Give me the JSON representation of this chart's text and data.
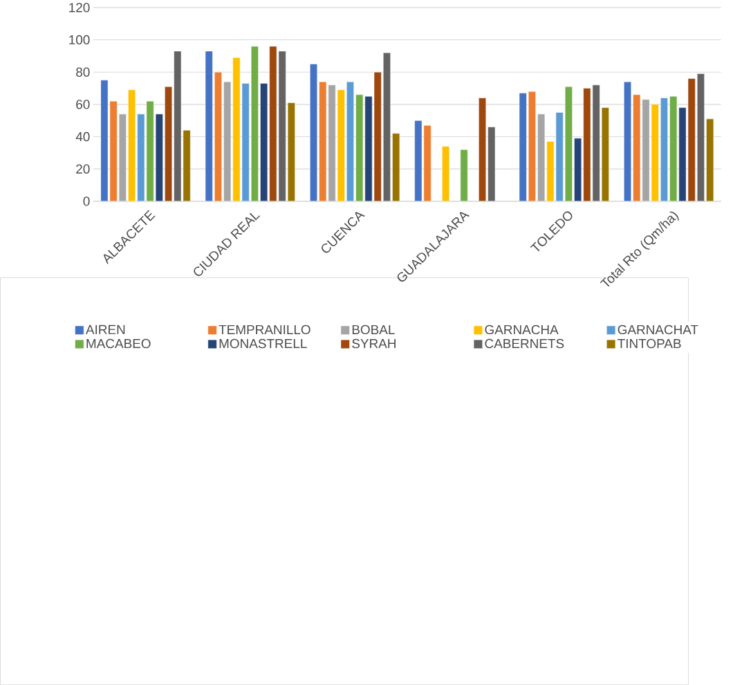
{
  "chart_data": {
    "type": "bar",
    "categories": [
      "ALBACETE",
      "CIUDAD REAL",
      "CUENCA",
      "GUADALAJARA",
      "TOLEDO",
      "Total Rto (Qm/ha)"
    ],
    "series": [
      {
        "name": "AIREN",
        "color": "#4472c4",
        "values": [
          75,
          93,
          85,
          50,
          67,
          74
        ]
      },
      {
        "name": "TEMPRANILLO",
        "color": "#ed7d31",
        "values": [
          62,
          80,
          74,
          47,
          68,
          66
        ]
      },
      {
        "name": "BOBAL",
        "color": "#a5a5a5",
        "values": [
          54,
          74,
          72,
          null,
          54,
          63
        ]
      },
      {
        "name": "GARNACHA",
        "color": "#ffc000",
        "values": [
          69,
          89,
          69,
          34,
          37,
          60
        ]
      },
      {
        "name": "GARNACHAT",
        "color": "#5b9bd5",
        "values": [
          54,
          73,
          74,
          null,
          55,
          64
        ]
      },
      {
        "name": "MACABEO",
        "color": "#70ad47",
        "values": [
          62,
          96,
          66,
          32,
          71,
          65
        ]
      },
      {
        "name": "MONASTRELL",
        "color": "#264478",
        "values": [
          54,
          73,
          65,
          null,
          39,
          58
        ]
      },
      {
        "name": "SYRAH",
        "color": "#9e480e",
        "values": [
          71,
          96,
          80,
          64,
          70,
          76
        ]
      },
      {
        "name": "CABERNETS",
        "color": "#636363",
        "values": [
          93,
          93,
          92,
          46,
          72,
          79
        ]
      },
      {
        "name": "TINTOPAB",
        "color": "#997300",
        "values": [
          44,
          61,
          42,
          null,
          58,
          51
        ]
      }
    ],
    "ylim": [
      0,
      120
    ],
    "yticks": [
      0,
      20,
      40,
      60,
      80,
      100,
      120
    ],
    "grid": "y",
    "legend": "bottom"
  }
}
